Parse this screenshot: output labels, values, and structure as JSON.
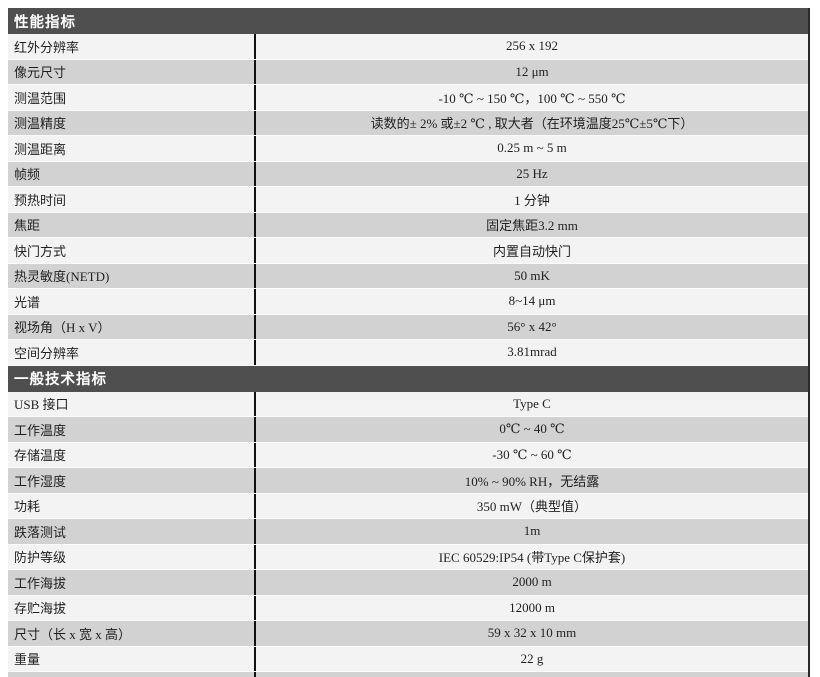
{
  "table": {
    "sections": [
      {
        "title": "性能指标",
        "rows": [
          {
            "label": "红外分辨率",
            "value": "256 x 192"
          },
          {
            "label": "像元尺寸",
            "value": "12 μm"
          },
          {
            "label": "测温范围",
            "value": "-10 ℃ ~ 150 ℃，100 ℃ ~ 550 ℃"
          },
          {
            "label": "测温精度",
            "value": "读数的± 2% 或±2 ℃ , 取大者（在环境温度25℃±5℃下）"
          },
          {
            "label": "测温距离",
            "value": "0.25 m ~ 5 m"
          },
          {
            "label": "帧频",
            "value": "25 Hz"
          },
          {
            "label": "预热时间",
            "value": "1 分钟"
          },
          {
            "label": "焦距",
            "value": "固定焦距3.2 mm"
          },
          {
            "label": "快门方式",
            "value": "内置自动快门"
          },
          {
            "label": "热灵敏度(NETD)",
            "value": "50 mK"
          },
          {
            "label": "光谱",
            "value": "8~14 μm"
          },
          {
            "label": "视场角（H x V）",
            "value": "56° x 42°"
          },
          {
            "label": "空间分辨率",
            "value": "3.81mrad"
          }
        ]
      },
      {
        "title": "一般技术指标",
        "rows": [
          {
            "label": "USB 接口",
            "value": "Type C"
          },
          {
            "label": "工作温度",
            "value": "0℃ ~ 40 ℃"
          },
          {
            "label": "存储温度",
            "value": "-30 ℃ ~ 60 ℃"
          },
          {
            "label": "工作湿度",
            "value": "10% ~ 90% RH，无结露"
          },
          {
            "label": "功耗",
            "value": "350 mW（典型值）"
          },
          {
            "label": "跌落测试",
            "value": "1m"
          },
          {
            "label": "防护等级",
            "value": "IEC 60529:IP54 (带Type C保护套)"
          },
          {
            "label": "工作海拔",
            "value": "2000 m"
          },
          {
            "label": "存贮海拔",
            "value": "12000 m"
          },
          {
            "label": "尺寸（长 x 宽 x 高）",
            "value": "59 x 32 x 10 mm"
          },
          {
            "label": "重量",
            "value": "22 g"
          }
        ]
      }
    ]
  },
  "colors": {
    "section_header_bg": "#4f4f4f",
    "section_header_text": "#ffffff",
    "row_light_bg": "#f3f3f3",
    "row_dark_bg": "#d2d2d2",
    "column_divider": "#111111",
    "table_right_border": "#2a2a2a",
    "text": "#1f1f1f"
  }
}
